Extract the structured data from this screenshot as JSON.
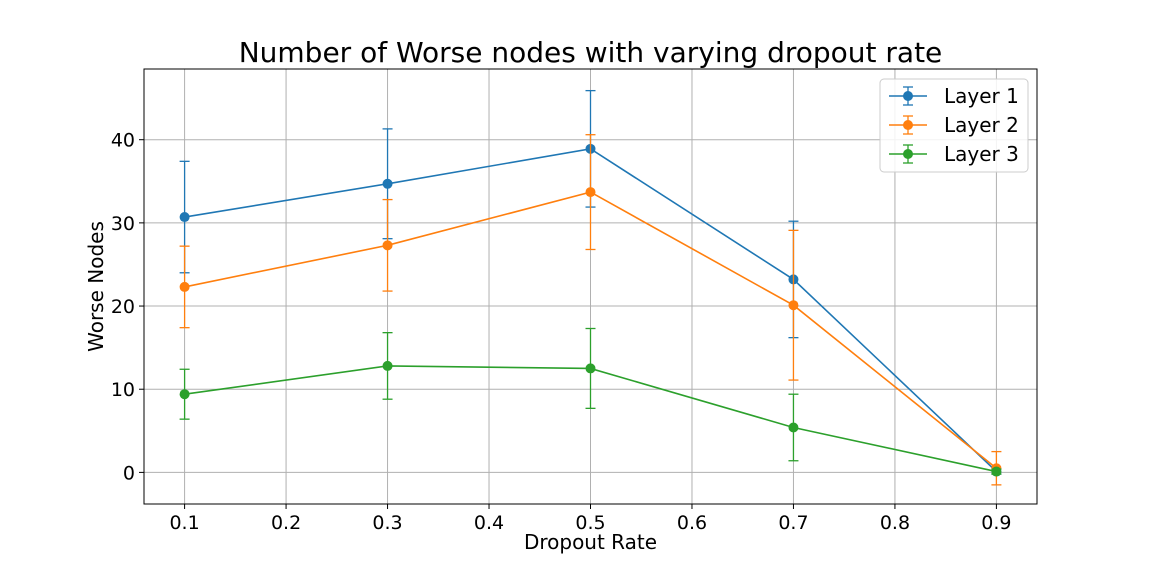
{
  "chart_data": {
    "type": "line",
    "title": "Number of Worse nodes with varying dropout rate",
    "xlabel": "Dropout Rate",
    "ylabel": "Worse Nodes",
    "x": [
      0.1,
      0.3,
      0.5,
      0.7,
      0.9
    ],
    "xlim": [
      0.06,
      0.94
    ],
    "ylim": [
      -3.8,
      48.5
    ],
    "xticks": [
      0.1,
      0.2,
      0.3,
      0.4,
      0.5,
      0.6,
      0.7,
      0.8,
      0.9
    ],
    "yticks": [
      0,
      10,
      20,
      30,
      40
    ],
    "grid": true,
    "legend_position": "upper right",
    "series": [
      {
        "name": "Layer 1",
        "color": "#1f77b4",
        "values": [
          30.7,
          34.7,
          38.9,
          23.2,
          0.1
        ],
        "errors": [
          6.7,
          6.6,
          7.0,
          7.0,
          0.3
        ]
      },
      {
        "name": "Layer 2",
        "color": "#ff7f0e",
        "values": [
          22.3,
          27.3,
          33.7,
          20.1,
          0.5
        ],
        "errors": [
          4.9,
          5.5,
          6.9,
          9.0,
          2.0
        ]
      },
      {
        "name": "Layer 3",
        "color": "#2ca02c",
        "values": [
          9.4,
          12.8,
          12.5,
          5.4,
          0.1
        ],
        "errors": [
          3.0,
          4.0,
          4.8,
          4.0,
          0.3
        ]
      }
    ]
  }
}
